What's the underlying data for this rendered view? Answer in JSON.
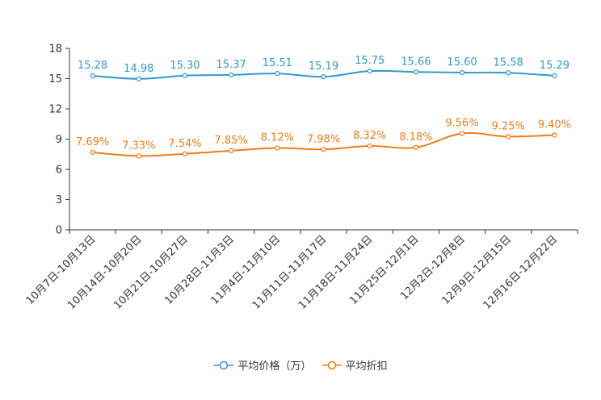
{
  "chart_data": {
    "type": "line",
    "categories": [
      "10月7日-10月13日",
      "10月14日-10月20日",
      "10月21日-10月27日",
      "10月28日-11月3日",
      "11月4日-11月10日",
      "11月11日-11月17日",
      "11月18日-11月24日",
      "11月25日-12月1日",
      "12月2日-12月8日",
      "12月9日-12月15日",
      "12月16日-12月22日"
    ],
    "ylim": [
      0,
      18
    ],
    "yticks": [
      "0",
      "3",
      "6",
      "9",
      "12",
      "15",
      "18"
    ],
    "series": [
      {
        "name": "平均价格（万）",
        "color": "#3399cc",
        "values": [
          15.28,
          14.98,
          15.3,
          15.37,
          15.51,
          15.19,
          15.75,
          15.66,
          15.6,
          15.58,
          15.29
        ],
        "labels": [
          "15.28",
          "14.98",
          "15.30",
          "15.37",
          "15.51",
          "15.19",
          "15.75",
          "15.66",
          "15.60",
          "15.58",
          "15.29"
        ]
      },
      {
        "name": "平均折扣",
        "color": "#f07b1a",
        "values": [
          7.69,
          7.33,
          7.54,
          7.85,
          8.12,
          7.98,
          8.32,
          8.18,
          9.56,
          9.25,
          9.4
        ],
        "labels": [
          "7.69%",
          "7.33%",
          "7.54%",
          "7.85%",
          "8.12%",
          "7.98%",
          "8.32%",
          "8.18%",
          "9.56%",
          "9.25%",
          "9.40%"
        ]
      }
    ]
  }
}
